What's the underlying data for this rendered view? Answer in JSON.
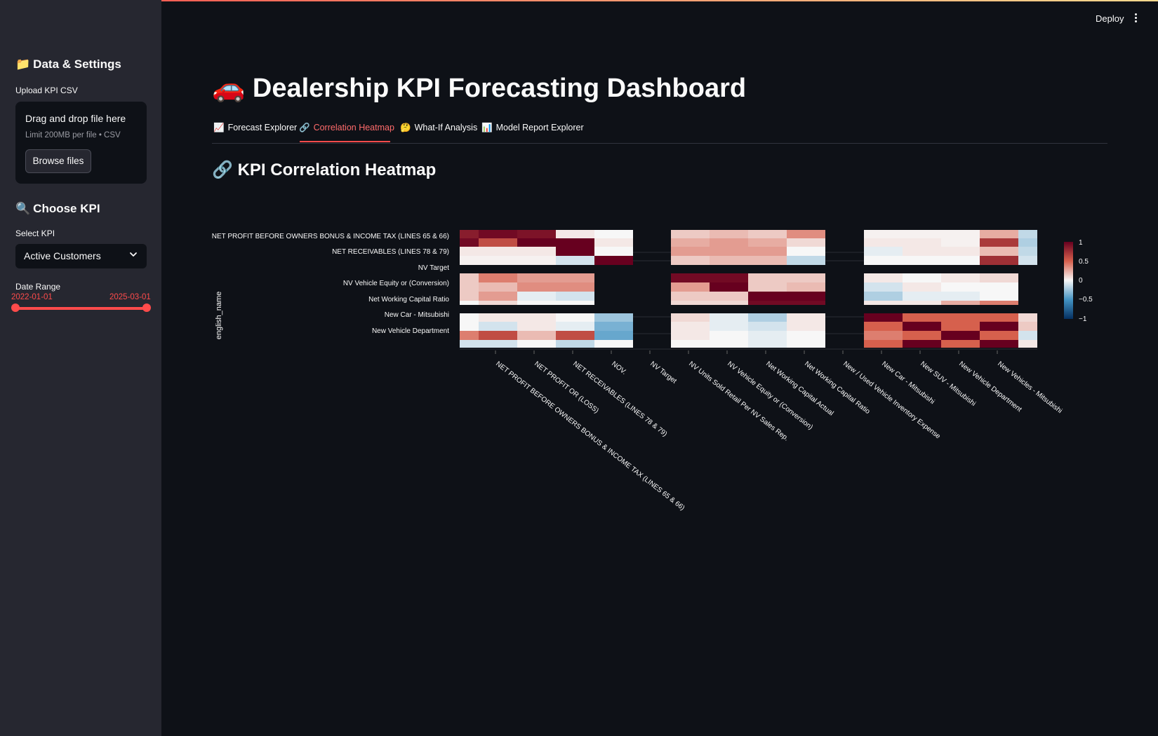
{
  "sidebar": {
    "data_settings_title": "Data & Settings",
    "upload_label": "Upload KPI CSV",
    "uploader": {
      "drag_text": "Drag and drop file here",
      "limit_text": "Limit 200MB per file • CSV",
      "browse_label": "Browse files"
    },
    "choose_kpi_title": "Choose KPI",
    "select_label": "Select KPI",
    "selected_kpi": "Active Customers",
    "date_range_label": "Date Range",
    "date_start": "2022-01-01",
    "date_end": "2025-03-01"
  },
  "header": {
    "deploy_label": "Deploy"
  },
  "main": {
    "title": "Dealership KPI Forecasting Dashboard",
    "tabs": [
      {
        "icon": "📈",
        "label": "Forecast Explorer"
      },
      {
        "icon": "🔗",
        "label": "Correlation Heatmap",
        "active": true
      },
      {
        "icon": "🤔",
        "label": "What-If Analysis"
      },
      {
        "icon": "📊",
        "label": "Model Report Explorer"
      }
    ],
    "section_title": "KPI Correlation Heatmap"
  },
  "colors": {
    "accent": "#ff4b4b",
    "background": "#0e1117",
    "sidebar": "#262730"
  },
  "chart_data": {
    "type": "heatmap",
    "ylabel": "english_name",
    "y_tick_labels": [
      "NET PROFIT BEFORE OWNERS BONUS & INCOME TAX  (LINES 65 & 66)",
      "NET RECEIVABLES  (LINES 78 & 79)",
      "NV Target",
      "NV Vehicle Equity or (Conversion)",
      "Net Working Capital Ratio",
      "New Car - Mitsubishi",
      "New Vehicle Department"
    ],
    "x_tick_labels": [
      "NET PROFIT BEFORE OWNERS BONUS & INCOME TAX  (LINES 65 & 66)",
      "NET PROFIT OR (LOSS)",
      "NET RECEIVABLES  (LINES 78 & 79)",
      "NOV.",
      "NV Target",
      "NV Units Sold Retail Per NV Sales Rep.",
      "NV Vehicle Equity or (Conversion)",
      "Net Working Capital Actual",
      "Net Working Capital Ratio",
      "New / Used Vehicle Inventory Expense",
      "New Car - Mitsubishi",
      "New SUV - Mitsubishi",
      "New Vehicle Department",
      "New Vehicles - Mitsubishi"
    ],
    "colorbar_ticks": [
      "1",
      "0.5",
      "0",
      "−0.5",
      "−1"
    ],
    "vmin": -1,
    "vmax": 1,
    "colorscale": "RdBu (reversed)",
    "blocks": [
      [
        [
          [
            0.85,
            0.95,
            0.9,
            0.05,
            0.0
          ],
          [
            0.95,
            0.6,
            1.0,
            1.0,
            0.05
          ],
          [
            0.05,
            0.05,
            0.05,
            1.0,
            0.0
          ],
          [
            0.02,
            0.02,
            0.02,
            -0.1,
            1.0
          ]
        ],
        [
          [
            0.15,
            0.2,
            0.15,
            0.35,
            0.1
          ],
          [
            0.25,
            0.3,
            0.25,
            0.1,
            0.05
          ],
          [
            0.3,
            0.3,
            0.3,
            0.0,
            0.05
          ],
          [
            0.15,
            0.2,
            0.2,
            -0.15,
            0.0
          ]
        ],
        [
          [
            0.02,
            0.02,
            0.02,
            0.25,
            -0.15
          ],
          [
            0.05,
            0.05,
            0.02,
            0.7,
            -0.2
          ],
          [
            -0.05,
            0.05,
            0.05,
            0.2,
            -0.15
          ],
          [
            0.0,
            0.0,
            0.0,
            0.75,
            -0.1
          ]
        ]
      ],
      [
        [
          [
            0.15,
            0.4,
            0.3,
            0.3
          ],
          [
            0.15,
            0.2,
            0.35,
            0.35
          ],
          [
            0.15,
            0.3,
            -0.05,
            -0.1
          ],
          [
            0.0,
            0.1,
            0.0,
            0.0
          ]
        ],
        [
          [
            0.95,
            0.95,
            0.15,
            0.15
          ],
          [
            0.3,
            1.0,
            0.15,
            0.2
          ],
          [
            0.15,
            0.15,
            1.0,
            1.0
          ],
          [
            0.1,
            0.1,
            0.95,
            0.95
          ]
        ],
        [
          [
            0.05,
            0.0,
            0.05,
            0.1
          ],
          [
            -0.1,
            0.05,
            0.0,
            0.0
          ],
          [
            -0.2,
            -0.05,
            -0.05,
            0.0
          ],
          [
            0.05,
            0.05,
            0.25,
            0.4
          ]
        ]
      ],
      [
        [
          [
            0.0,
            0.05,
            0.05,
            0.0,
            -0.25
          ],
          [
            0.0,
            -0.1,
            0.05,
            -0.05,
            -0.35
          ],
          [
            0.4,
            0.6,
            0.2,
            0.6,
            -0.4
          ],
          [
            -0.1,
            -0.1,
            0.0,
            -0.15,
            0.0
          ]
        ],
        [
          [
            0.1,
            -0.05,
            -0.2,
            0.05,
            0.05
          ],
          [
            0.05,
            -0.05,
            -0.1,
            0.05,
            -0.1
          ],
          [
            0.05,
            0.0,
            -0.05,
            0.0,
            0.05
          ],
          [
            0.0,
            0.0,
            -0.05,
            0.0,
            0.5
          ]
        ],
        [
          [
            1.0,
            0.5,
            0.5,
            0.5,
            0.1
          ],
          [
            0.5,
            1.0,
            0.5,
            1.0,
            0.15
          ],
          [
            0.4,
            0.5,
            1.0,
            0.5,
            -0.1
          ],
          [
            0.5,
            1.0,
            0.5,
            1.0,
            0.05
          ]
        ]
      ]
    ]
  }
}
